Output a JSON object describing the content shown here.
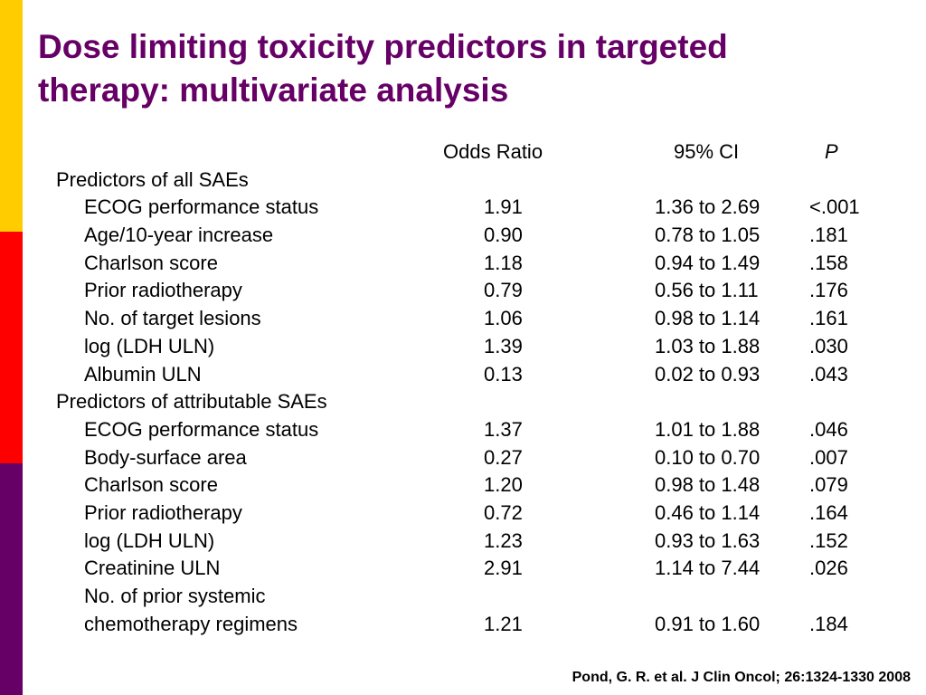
{
  "slide": {
    "title_lines": [
      "Dose limiting toxicity predictors in targeted",
      "therapy: multivariate analysis"
    ],
    "accent_colors": {
      "yellow": "#FFCC00",
      "red": "#FF0000",
      "purple": "#660066"
    },
    "footer": "Pond, G. R. et al. J Clin Oncol; 26:1324-1330 2008"
  },
  "table": {
    "headers": {
      "odds_ratio": "Odds Ratio",
      "ci": "95% CI",
      "p": "P"
    },
    "groups": [
      {
        "label": "Predictors of all SAEs",
        "rows": [
          {
            "predictor": [
              "ECOG performance status"
            ],
            "or": "1.91",
            "ci": "1.36 to 2.69",
            "p": "<.001"
          },
          {
            "predictor": [
              "Age/10-year increase"
            ],
            "or": "0.90",
            "ci": "0.78 to 1.05",
            "p": ".181"
          },
          {
            "predictor": [
              "Charlson score"
            ],
            "or": "1.18",
            "ci": "0.94 to 1.49",
            "p": ".158"
          },
          {
            "predictor": [
              "Prior radiotherapy"
            ],
            "or": "0.79",
            "ci": "0.56 to 1.11",
            "p": ".176"
          },
          {
            "predictor": [
              "No. of target lesions"
            ],
            "or": "1.06",
            "ci": "0.98 to 1.14",
            "p": ".161"
          },
          {
            "predictor": [
              "log (LDH ULN)"
            ],
            "or": "1.39",
            "ci": "1.03 to 1.88",
            "p": ".030"
          },
          {
            "predictor": [
              "Albumin ULN"
            ],
            "or": "0.13",
            "ci": "0.02 to 0.93",
            "p": ".043"
          }
        ]
      },
      {
        "label": "Predictors of attributable SAEs",
        "rows": [
          {
            "predictor": [
              "ECOG performance status"
            ],
            "or": "1.37",
            "ci": "1.01 to 1.88",
            "p": ".046"
          },
          {
            "predictor": [
              "Body-surface area"
            ],
            "or": "0.27",
            "ci": "0.10 to 0.70",
            "p": ".007"
          },
          {
            "predictor": [
              "Charlson score"
            ],
            "or": "1.20",
            "ci": "0.98 to 1.48",
            "p": ".079"
          },
          {
            "predictor": [
              "Prior radiotherapy"
            ],
            "or": "0.72",
            "ci": "0.46 to 1.14",
            "p": ".164"
          },
          {
            "predictor": [
              "log (LDH ULN)"
            ],
            "or": "1.23",
            "ci": "0.93 to 1.63",
            "p": ".152"
          },
          {
            "predictor": [
              "Creatinine ULN"
            ],
            "or": "2.91",
            "ci": "1.14 to 7.44",
            "p": ".026"
          },
          {
            "predictor": [
              "No. of prior systemic",
              "chemotherapy regimens"
            ],
            "or": "1.21",
            "ci": "0.91 to 1.60",
            "p": ".184"
          }
        ]
      }
    ]
  }
}
